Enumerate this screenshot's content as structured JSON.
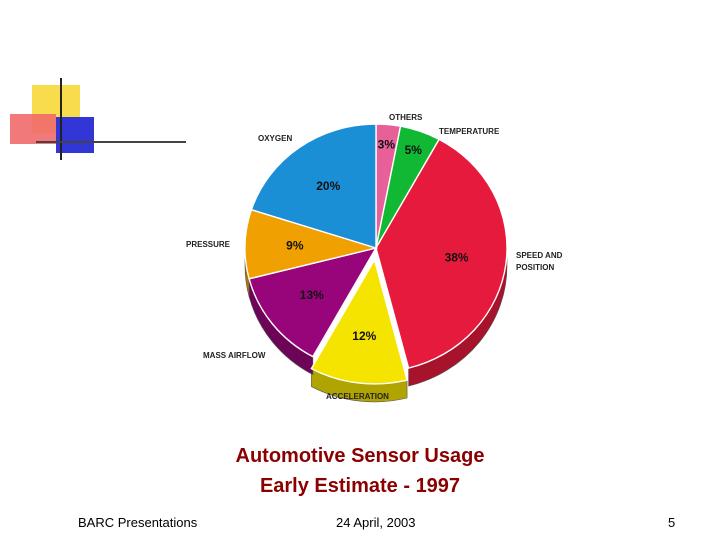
{
  "slide": {
    "title_line1": "Automotive Sensor Usage",
    "title_line2": "Early Estimate - 1997",
    "footer_left": "BARC Presentations",
    "footer_center": "24 April, 2003",
    "footer_right": "5"
  },
  "chart_data": {
    "type": "pie",
    "title": "",
    "slices": [
      {
        "label": "OTHERS",
        "value": 3,
        "display": "3%",
        "color": "#e8609a"
      },
      {
        "label": "TEMPERATURE",
        "value": 5,
        "display": "5%",
        "color": "#10b833"
      },
      {
        "label": "SPEED AND POSITION",
        "value": 38,
        "display": "38%",
        "color": "#e61a3c"
      },
      {
        "label": "ACCELERATION",
        "value": 12,
        "display": "12%",
        "color": "#f4e400"
      },
      {
        "label": "MASS AIRFLOW",
        "value": 13,
        "display": "13%",
        "color": "#98057a"
      },
      {
        "label": "PRESSURE",
        "value": 9,
        "display": "9%",
        "color": "#f0a000"
      },
      {
        "label": "OXYGEN",
        "value": 20,
        "display": "20%",
        "color": "#1a8fd6"
      }
    ]
  }
}
